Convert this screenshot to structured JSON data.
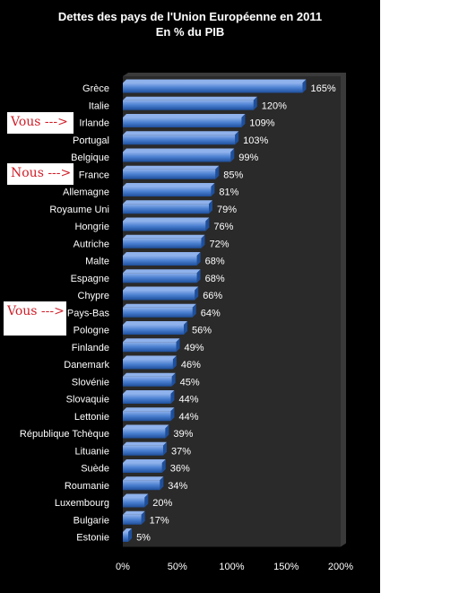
{
  "chart_data": {
    "type": "bar",
    "orientation": "horizontal",
    "title": "Dettes des pays de l'Union Européenne en 2011",
    "subtitle": "En % du PIB",
    "categories": [
      "Grèce",
      "Italie",
      "Irlande",
      "Portugal",
      "Belgique",
      "France",
      "Allemagne",
      "Royaume Uni",
      "Hongrie",
      "Autriche",
      "Malte",
      "Espagne",
      "Chypre",
      "Pays-Bas",
      "Pologne",
      "Finlande",
      "Danemark",
      "Slovénie",
      "Slovaquie",
      "Lettonie",
      "République Tchèque",
      "Lituanie",
      "Suède",
      "Roumanie",
      "Luxembourg",
      "Bulgarie",
      "Estonie"
    ],
    "values": [
      165,
      120,
      109,
      103,
      99,
      85,
      81,
      79,
      76,
      72,
      68,
      68,
      66,
      64,
      56,
      49,
      46,
      45,
      44,
      44,
      39,
      37,
      36,
      34,
      20,
      17,
      5
    ],
    "data_labels": [
      "165%",
      "120%",
      "109%",
      "103%",
      "99%",
      "85%",
      "81%",
      "79%",
      "76%",
      "72%",
      "68%",
      "68%",
      "66%",
      "64%",
      "56%",
      "49%",
      "46%",
      "45%",
      "44%",
      "44%",
      "39%",
      "37%",
      "36%",
      "34%",
      "20%",
      "17%",
      "5%"
    ],
    "xlim": [
      0,
      200
    ],
    "x_ticks": [
      0,
      50,
      100,
      150,
      200
    ],
    "x_tick_labels": [
      "0%",
      "50%",
      "100%",
      "150%",
      "200%"
    ],
    "grid": false,
    "legend": "none"
  },
  "annotations": [
    {
      "text": "Vous --->",
      "target": "Irlande"
    },
    {
      "text": "Nous --->",
      "target": "France"
    },
    {
      "text": "Vous --->",
      "target": "Pays-Bas"
    }
  ],
  "colors": {
    "background": "#000000",
    "bar": "#4a7fd0",
    "bar_light": "#8fb2ec",
    "bar_dark": "#1e4f9c",
    "floor": "#3a3a3a",
    "text": "#ffffff",
    "annotation": "#d0202a"
  }
}
